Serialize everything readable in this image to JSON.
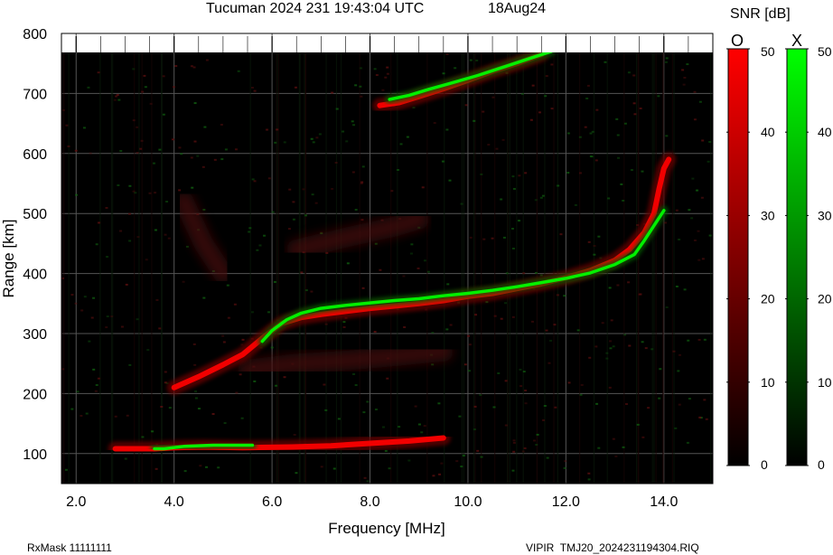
{
  "header": {
    "station": "Tucuman",
    "datetime": "2024 231 19:43:04 UTC",
    "date_short": "18Aug24"
  },
  "footer": {
    "rxmask": "RxMask 11111111",
    "filename": "VIPIR  TMJ20_2024231194304.RIQ"
  },
  "colorbar": {
    "title": "SNR [dB]",
    "o_label": "O",
    "x_label": "X",
    "ticks": [
      0,
      10,
      20,
      30,
      40,
      50
    ],
    "o_colors": [
      "#000000",
      "#ff0000"
    ],
    "x_colors": [
      "#000000",
      "#00ff00"
    ]
  },
  "chart_data": {
    "type": "heatmap",
    "title": "Tucuman 2024 231 19:43:04 UTC",
    "xlabel": "Frequency [MHz]",
    "ylabel": "Range [km]",
    "xlim": [
      1.7,
      15.0
    ],
    "ylim": [
      50,
      800
    ],
    "xticks": [
      "2.0",
      "4.0",
      "6.0",
      "8.0",
      "10.0",
      "12.0",
      "14.0"
    ],
    "yticks": [
      "100",
      "200",
      "300",
      "400",
      "500",
      "600",
      "700",
      "800"
    ],
    "grid": true,
    "background": "#000000",
    "series": [
      {
        "mode": "O",
        "color": "#ff0000",
        "traces": [
          {
            "points": [
              [
                2.8,
                108
              ],
              [
                3.2,
                108
              ],
              [
                3.6,
                108
              ],
              [
                4.0,
                110
              ],
              [
                4.6,
                111
              ],
              [
                5.4,
                110
              ],
              [
                6.4,
                111
              ],
              [
                7.2,
                113
              ],
              [
                8.0,
                117
              ],
              [
                8.8,
                121
              ],
              [
                9.5,
                126
              ]
            ]
          },
          {
            "points": [
              [
                4.0,
                210
              ],
              [
                4.5,
                228
              ],
              [
                5.0,
                248
              ],
              [
                5.4,
                265
              ],
              [
                5.8,
                292
              ],
              [
                6.2,
                317
              ],
              [
                6.6,
                327
              ],
              [
                7.0,
                332
              ],
              [
                7.5,
                337
              ],
              [
                8.0,
                342
              ],
              [
                8.5,
                346
              ],
              [
                9.0,
                350
              ],
              [
                9.5,
                355
              ],
              [
                10.0,
                362
              ],
              [
                10.5,
                367
              ],
              [
                11.0,
                375
              ],
              [
                11.5,
                383
              ],
              [
                12.0,
                393
              ],
              [
                12.5,
                405
              ],
              [
                13.0,
                422
              ],
              [
                13.3,
                440
              ],
              [
                13.6,
                468
              ],
              [
                13.8,
                500
              ],
              [
                13.9,
                540
              ],
              [
                14.0,
                575
              ],
              [
                14.1,
                590
              ]
            ]
          },
          {
            "points": [
              [
                8.2,
                680
              ],
              [
                8.6,
                685
              ],
              [
                9.0,
                695
              ],
              [
                9.5,
                708
              ],
              [
                10.0,
                722
              ],
              [
                10.5,
                737
              ],
              [
                11.0,
                750
              ],
              [
                11.5,
                765
              ]
            ]
          }
        ]
      },
      {
        "mode": "X",
        "color": "#00ff00",
        "traces": [
          {
            "points": [
              [
                3.6,
                108
              ],
              [
                3.8,
                108
              ],
              [
                4.2,
                112
              ],
              [
                4.8,
                114
              ],
              [
                5.6,
                114
              ]
            ]
          },
          {
            "points": [
              [
                5.8,
                287
              ],
              [
                6.0,
                305
              ],
              [
                6.3,
                323
              ],
              [
                6.6,
                334
              ],
              [
                7.0,
                342
              ],
              [
                7.5,
                347
              ],
              [
                8.0,
                351
              ],
              [
                8.5,
                355
              ],
              [
                9.0,
                358
              ],
              [
                9.5,
                363
              ],
              [
                10.0,
                367
              ],
              [
                10.5,
                372
              ],
              [
                11.0,
                378
              ],
              [
                11.5,
                385
              ],
              [
                12.0,
                392
              ],
              [
                12.5,
                401
              ],
              [
                13.0,
                415
              ],
              [
                13.4,
                432
              ],
              [
                13.6,
                455
              ],
              [
                13.8,
                480
              ],
              [
                14.0,
                505
              ]
            ]
          },
          {
            "points": [
              [
                8.4,
                690
              ],
              [
                8.8,
                697
              ],
              [
                9.2,
                707
              ],
              [
                9.6,
                716
              ],
              [
                10.2,
                730
              ],
              [
                10.8,
                746
              ],
              [
                11.4,
                762
              ],
              [
                11.7,
                770
              ]
            ]
          }
        ]
      }
    ]
  }
}
